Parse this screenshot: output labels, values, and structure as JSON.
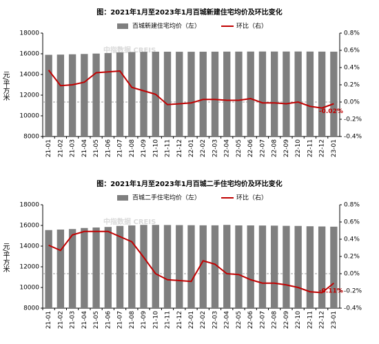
{
  "chart_data": [
    {
      "type": "combo",
      "title": "图：2021年1月至2023年1月百城新建住宅均价及环比变化",
      "y_label": "元/平方米",
      "watermark": "中指数据 CREIS",
      "categories": [
        "21-01",
        "21-02",
        "21-03",
        "21-04",
        "21-05",
        "21-06",
        "21-07",
        "21-08",
        "21-09",
        "21-10",
        "21-11",
        "21-12",
        "22-01",
        "22-02",
        "22-03",
        "22-04",
        "22-05",
        "22-06",
        "22-07",
        "22-08",
        "22-09",
        "22-10",
        "22-11",
        "22-12",
        "23-01"
      ],
      "series": [
        {
          "name": "百城新建住宅均价（左）",
          "type": "bar",
          "color": "#7f7f7f",
          "values": [
            15900,
            15920,
            15950,
            15980,
            16020,
            16070,
            16130,
            16170,
            16190,
            16200,
            16200,
            16195,
            16195,
            16200,
            16205,
            16210,
            16210,
            16215,
            16220,
            16218,
            16218,
            16220,
            16215,
            16210,
            16205
          ]
        },
        {
          "name": "环比（右）",
          "type": "line",
          "axis": "y2",
          "color": "#c00000",
          "values": [
            0.37,
            0.19,
            0.2,
            0.23,
            0.34,
            0.35,
            0.36,
            0.17,
            0.13,
            0.09,
            -0.03,
            -0.02,
            -0.01,
            0.03,
            0.03,
            0.02,
            0.02,
            0.04,
            -0.01,
            -0.01,
            -0.02,
            0.0,
            -0.05,
            -0.07,
            -0.02
          ],
          "value_labels": [
            null,
            null,
            null,
            null,
            null,
            null,
            null,
            null,
            null,
            null,
            null,
            null,
            null,
            null,
            null,
            null,
            null,
            null,
            null,
            null,
            null,
            null,
            null,
            null,
            "-0.02%"
          ]
        }
      ],
      "ylim": [
        8000,
        18000
      ],
      "yticks": [
        8000,
        10000,
        12000,
        14000,
        16000,
        18000
      ],
      "y2lim": [
        -0.4,
        0.8
      ],
      "y2ticks": [
        {
          "value": -0.4,
          "label": "-0.4%"
        },
        {
          "value": -0.2,
          "label": "-0.2%"
        },
        {
          "value": 0.0,
          "label": "0.0%"
        },
        {
          "value": 0.2,
          "label": "0.2%"
        },
        {
          "value": 0.4,
          "label": "0.4%"
        },
        {
          "value": 0.6,
          "label": "0.6%"
        },
        {
          "value": 0.8,
          "label": "0.8%"
        }
      ]
    },
    {
      "type": "combo",
      "title": "图：2021年1月至2023年1月百城二手住宅均价及环比变化",
      "y_label": "元/平方米",
      "watermark": "中指数据 CREIS",
      "categories": [
        "21-01",
        "21-02",
        "21-03",
        "21-04",
        "21-05",
        "21-06",
        "21-07",
        "21-08",
        "21-09",
        "21-10",
        "21-11",
        "21-12",
        "22-01",
        "22-02",
        "22-03",
        "22-04",
        "22-05",
        "22-06",
        "22-07",
        "22-08",
        "22-09",
        "22-10",
        "22-11",
        "22-12",
        "23-01"
      ],
      "series": [
        {
          "name": "百城二手住宅均价（左）",
          "type": "bar",
          "color": "#7f7f7f",
          "values": [
            15550,
            15600,
            15650,
            15750,
            15800,
            15850,
            15950,
            16000,
            16050,
            16050,
            16040,
            16030,
            16020,
            16010,
            16010,
            16050,
            16000,
            16000,
            15990,
            15980,
            15960,
            15950,
            15920,
            15900,
            15880
          ]
        },
        {
          "name": "环比（右）",
          "type": "line",
          "axis": "y2",
          "color": "#c00000",
          "values": [
            0.33,
            0.27,
            0.45,
            0.49,
            0.49,
            0.49,
            0.43,
            0.37,
            0.19,
            0.0,
            -0.07,
            -0.08,
            -0.09,
            0.15,
            0.11,
            0.0,
            -0.01,
            -0.07,
            -0.11,
            -0.11,
            -0.13,
            -0.16,
            -0.21,
            -0.22,
            -0.11
          ],
          "value_labels": [
            null,
            null,
            null,
            null,
            null,
            null,
            null,
            null,
            null,
            null,
            null,
            null,
            null,
            null,
            null,
            null,
            null,
            null,
            null,
            null,
            null,
            null,
            null,
            null,
            "-0.11%"
          ]
        }
      ],
      "ylim": [
        8000,
        18000
      ],
      "yticks": [
        8000,
        10000,
        12000,
        14000,
        16000,
        18000
      ],
      "y2lim": [
        -0.4,
        0.8
      ],
      "y2ticks": [
        {
          "value": -0.4,
          "label": "-0.4%"
        },
        {
          "value": -0.2,
          "label": "-0.2%"
        },
        {
          "value": 0.0,
          "label": "0.0%"
        },
        {
          "value": 0.2,
          "label": "0.2%"
        },
        {
          "value": 0.4,
          "label": "0.4%"
        },
        {
          "value": 0.6,
          "label": "0.6%"
        },
        {
          "value": 0.8,
          "label": "0.8%"
        }
      ]
    }
  ]
}
